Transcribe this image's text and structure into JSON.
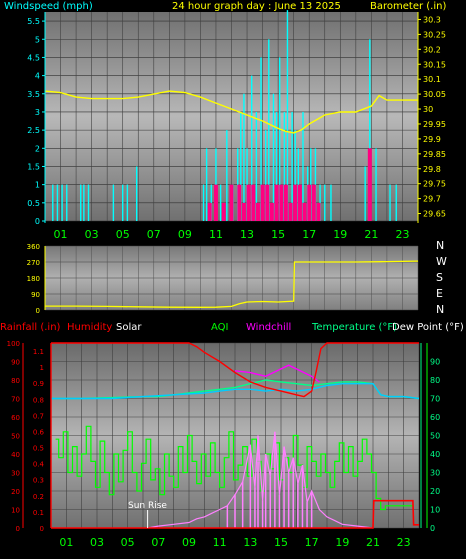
{
  "panel1": {
    "left_label": "Windspeed (mph)",
    "title": "24 hour graph day : June 13 2025",
    "right_label": "Barometer (.in)",
    "left_ticks": [
      "5.5",
      "5",
      "4.5",
      "4",
      "3.5",
      "3",
      "2.5",
      "2",
      "1.5",
      "1",
      "0.5",
      "0"
    ],
    "right_ticks": [
      "30.3",
      "30.25",
      "30.2",
      "30.15",
      "30.1",
      "30.05",
      "30",
      "29.95",
      "29.9",
      "29.85",
      "29.8",
      "29.75",
      "29.7",
      "29.65"
    ],
    "x_ticks": [
      "01",
      "03",
      "05",
      "07",
      "09",
      "11",
      "13",
      "15",
      "17",
      "19",
      "21",
      "23"
    ],
    "colors": {
      "windspeed": "#00ffff",
      "gust": "#ff0080",
      "barometer": "#ffff00",
      "left_label": "#00ffff",
      "title": "#ffff00",
      "right_label": "#ffff00"
    }
  },
  "panel2": {
    "left_ticks": [
      "360",
      "270",
      "180",
      "90",
      "0"
    ],
    "dir_letters": [
      "N",
      "W",
      "S",
      "E",
      "N"
    ],
    "colors": {
      "direction": "#ffff00"
    }
  },
  "panel3": {
    "labels": [
      "Rainfall (.in)",
      "Humidity",
      "Solar",
      "AQI",
      "Windchill",
      "Temperature (°F)",
      "Dew Point (°F)"
    ],
    "label_colors": [
      "#ff0000",
      "#ff0000",
      "#ffffff",
      "#00ff00",
      "#ff00ff",
      "#00ff88",
      "#ffffff"
    ],
    "left_ticks_pct": [
      "100",
      "90",
      "80",
      "70",
      "60",
      "50",
      "40",
      "30",
      "20",
      "10",
      "0"
    ],
    "left_ticks_rain": [
      "1.1",
      "1",
      "0.9",
      "0.8",
      "0.7",
      "0.6",
      "0.5",
      "0.4",
      "0.3",
      "0.2",
      "0.1",
      "0"
    ],
    "right_ticks": [
      "90",
      "80",
      "70",
      "60",
      "50",
      "40",
      "30",
      "20",
      "10",
      "0"
    ],
    "x_ticks": [
      "01",
      "03",
      "05",
      "07",
      "09",
      "11",
      "13",
      "15",
      "17",
      "19",
      "21",
      "23"
    ],
    "annotation": "Sun Rise",
    "colors": {
      "humidity": "#ff0000",
      "solar": "#ff80ff",
      "aqi": "#00ff00",
      "windchill": "#ff00ff",
      "temperature": "#00ff88",
      "dewpoint": "#00ccff",
      "rain": "#ff0000"
    }
  },
  "chart_data": [
    {
      "type": "line",
      "title": "24 hour graph day : June 13 2025",
      "x_label": "",
      "y_left_label": "Windspeed (mph)",
      "y_right_label": "Barometer (.in)",
      "y_left_range": [
        0,
        5.75
      ],
      "y_right_range": [
        29.625,
        30.325
      ],
      "x_range_hours": [
        0,
        24
      ],
      "series": [
        {
          "name": "Windspeed (mph)",
          "axis": "left",
          "x_hours": [
            0.5,
            0.8,
            1.1,
            1.4,
            2.3,
            2.5,
            2.8,
            4.4,
            5.0,
            5.3,
            5.9,
            10.2,
            10.4,
            10.7,
            11.0,
            11.3,
            11.7,
            12.1,
            12.4,
            12.6,
            12.8,
            13.0,
            13.3,
            13.6,
            13.9,
            14.2,
            14.4,
            14.7,
            14.9,
            15.1,
            15.4,
            15.6,
            15.9,
            16.1,
            16.3,
            16.6,
            16.9,
            17.1,
            17.4,
            17.7,
            18.0,
            18.4,
            20.6,
            20.9,
            21.3,
            22.2,
            22.6
          ],
          "y_mph": [
            1,
            1,
            1,
            1,
            1,
            1,
            1,
            1,
            1,
            1,
            1.5,
            1,
            2,
            1,
            2,
            1,
            2.5,
            1,
            2,
            3,
            3.5,
            2,
            4,
            3,
            4.5,
            2.5,
            5,
            3.5,
            3,
            4.5,
            3,
            5.8,
            3,
            2.5,
            2,
            3,
            1.5,
            2,
            2,
            1,
            1,
            1,
            1.5,
            5,
            2,
            1,
            1
          ]
        },
        {
          "name": "Wind Gust (mph)",
          "axis": "left",
          "x_hours": [
            10.6,
            11.0,
            11.5,
            12.0,
            12.5,
            12.8,
            13.1,
            13.4,
            13.7,
            14.0,
            14.3,
            14.6,
            14.9,
            15.2,
            15.5,
            15.8,
            16.1,
            16.4,
            16.7,
            17.0,
            17.3,
            17.6,
            20.9
          ],
          "y_mph": [
            0.5,
            1,
            0.5,
            1,
            1,
            0.5,
            1,
            1,
            0.5,
            1,
            1,
            0.5,
            1,
            1,
            1,
            0.5,
            1,
            1,
            0.5,
            1,
            1,
            0.5,
            2
          ]
        },
        {
          "name": "Barometer (.in)",
          "axis": "right",
          "x_hours": [
            0,
            1,
            2,
            3,
            4,
            5,
            6,
            7,
            8,
            9,
            10,
            11,
            12,
            13,
            14,
            15,
            15.5,
            16,
            16.5,
            17,
            18,
            19,
            20,
            21,
            21.5,
            22,
            23,
            24
          ],
          "y_in": [
            30.06,
            30.055,
            30.04,
            30.035,
            30.035,
            30.035,
            30.04,
            30.05,
            30.06,
            30.055,
            30.04,
            30.02,
            30.0,
            29.98,
            29.96,
            29.935,
            29.925,
            29.92,
            29.93,
            29.95,
            29.98,
            29.99,
            29.99,
            30.01,
            30.045,
            30.03,
            30.03,
            30.03
          ]
        }
      ]
    },
    {
      "type": "line",
      "title": "",
      "y_left_range": [
        0,
        360
      ],
      "x_range_hours": [
        0,
        24
      ],
      "series": [
        {
          "name": "",
          "x_hours": [
            0,
            2,
            4,
            6,
            8,
            10,
            11,
            12,
            12.5,
            13,
            14,
            15,
            16,
            16.05,
            18,
            20,
            22,
            24
          ],
          "y_deg": [
            22,
            22,
            20,
            18,
            16,
            15,
            16,
            20,
            35,
            45,
            48,
            45,
            50,
            270,
            270,
            270,
            272,
            275
          ]
        }
      ]
    },
    {
      "type": "line",
      "title": "",
      "y_left_label": "Rainfall (.in) / Humidity",
      "y_right_label": "Temperature (°F)",
      "y_left_range": [
        0,
        100
      ],
      "y_right_range": [
        0,
        100
      ],
      "x_range_hours": [
        0,
        24
      ],
      "series": [
        {
          "name": "Humidity",
          "axis": "left",
          "x_hours": [
            0,
            5,
            8,
            9,
            9.5,
            10,
            11,
            12,
            13,
            14,
            15,
            16,
            16.5,
            17,
            17.3,
            17.6,
            18,
            19,
            20,
            21,
            22,
            23,
            24
          ],
          "y_pct": [
            100,
            100,
            100,
            100,
            98,
            95,
            90,
            84,
            79,
            76,
            74,
            72,
            71,
            74,
            85,
            97,
            100,
            100,
            100,
            100,
            100,
            100,
            100
          ]
        },
        {
          "name": "Temperature (°F)",
          "axis": "right",
          "x_hours": [
            0,
            2,
            4,
            6,
            7,
            8,
            9,
            10,
            11,
            12,
            13,
            14,
            15,
            16,
            17,
            18,
            19,
            20,
            21,
            21.5,
            22,
            23,
            24
          ],
          "y_f": [
            70,
            70,
            70.5,
            71,
            71,
            72,
            73,
            74,
            75,
            76,
            78,
            80,
            79,
            78,
            77,
            78,
            79,
            79,
            78,
            72,
            71,
            71,
            70
          ]
        },
        {
          "name": "Dew Point (°F)",
          "axis": "right",
          "x_hours": [
            0,
            2,
            4,
            6,
            8,
            10,
            11,
            12,
            13,
            14,
            15,
            16,
            17,
            18,
            19,
            20,
            21,
            21.5,
            22,
            23,
            24
          ],
          "y_f": [
            70,
            70,
            70,
            71,
            72,
            73,
            74,
            75,
            75,
            74,
            75,
            74,
            75,
            77,
            78,
            78,
            78,
            72,
            71,
            71,
            70
          ]
        },
        {
          "name": "Windchill",
          "axis": "right",
          "x_hours": [
            12,
            13,
            14,
            15,
            15.5,
            16,
            16.5,
            17,
            17.5
          ],
          "y_f": [
            85,
            84,
            82,
            86,
            88,
            86,
            84,
            82,
            79
          ]
        },
        {
          "name": "AQI",
          "axis": "right",
          "x_hours": [
            0.3,
            0.5,
            0.8,
            1.1,
            1.4,
            1.7,
            2.0,
            2.3,
            2.6,
            2.9,
            3.2,
            3.5,
            3.8,
            4.1,
            4.4,
            4.7,
            5.0,
            5.3,
            5.6,
            5.9,
            6.2,
            6.5,
            6.8,
            7.1,
            7.4,
            7.7,
            8.0,
            8.3,
            8.6,
            8.9,
            9.2,
            9.5,
            9.8,
            10.1,
            10.4,
            10.7,
            11.0,
            11.3,
            11.6,
            11.9,
            12.2,
            12.5,
            12.8,
            13.1,
            13.4,
            13.7,
            14.0,
            14.3,
            14.6,
            14.9,
            15.2,
            15.5,
            15.8,
            16.1,
            16.4,
            16.7,
            17.0,
            17.3,
            17.6,
            17.9,
            18.2,
            18.5,
            18.8,
            19.1,
            19.4,
            19.7,
            20.0,
            20.3,
            20.6,
            20.9,
            21.2,
            21.5,
            21.8,
            22.1,
            22.4,
            22.7,
            23.0,
            23.3,
            23.6
          ],
          "y": [
            48,
            38,
            52,
            30,
            44,
            28,
            40,
            55,
            36,
            22,
            47,
            30,
            18,
            40,
            25,
            42,
            52,
            30,
            20,
            35,
            48,
            26,
            32,
            18,
            40,
            28,
            22,
            44,
            30,
            50,
            36,
            24,
            40,
            28,
            46,
            30,
            22,
            38,
            52,
            26,
            34,
            44,
            28,
            48,
            36,
            20,
            40,
            32,
            46,
            26,
            38,
            30,
            50,
            34,
            22,
            44,
            36,
            28,
            40,
            30,
            22,
            36,
            46,
            30,
            44,
            28,
            36,
            48,
            40,
            30,
            16,
            10,
            12,
            12,
            12,
            12,
            12,
            12,
            12
          ]
        },
        {
          "name": "Solar",
          "axis": "right",
          "x_hours": [
            6.3,
            7,
            8,
            9,
            9.5,
            10,
            10.5,
            11,
            11.5,
            12,
            12.5,
            13,
            13.3,
            13.5,
            13.8,
            14,
            14.3,
            14.6,
            14.9,
            15.2,
            15.5,
            15.8,
            16.1,
            16.4,
            16.7,
            17,
            17.5,
            18,
            18.5,
            19,
            20,
            21
          ],
          "y": [
            0,
            1,
            2,
            3,
            5,
            6,
            8,
            10,
            12,
            18,
            25,
            45,
            22,
            50,
            15,
            40,
            28,
            52,
            18,
            44,
            30,
            38,
            24,
            34,
            14,
            20,
            10,
            6,
            4,
            2,
            1,
            0
          ]
        },
        {
          "name": "Rainfall (.in)",
          "axis": "left_rain",
          "x_hours": [
            0,
            21.0,
            21.05,
            23.6,
            23.65,
            24
          ],
          "y_in": [
            0,
            0,
            0.17,
            0.17,
            0.02,
            0.02
          ]
        }
      ]
    }
  ]
}
